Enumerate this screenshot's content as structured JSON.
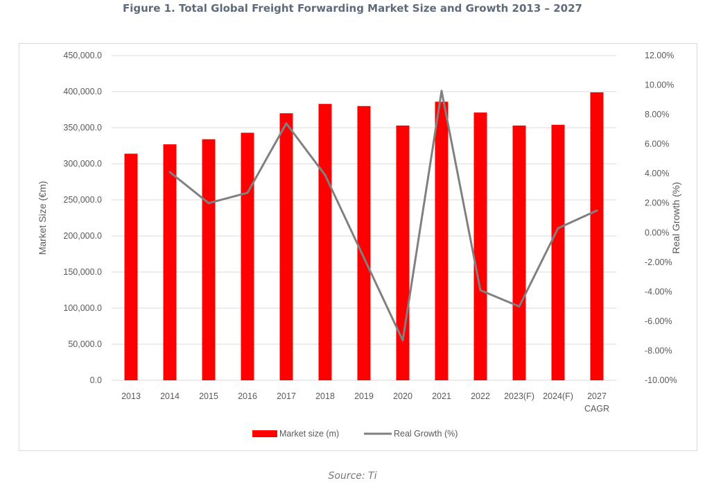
{
  "figure_title": "Figure 1. Total Global Freight Forwarding Market Size and Growth 2013 – 2027",
  "source": "Source: Ti",
  "colors": {
    "bar": "#ff0000",
    "line": "#808080",
    "grid": "#d9d9d9",
    "text": "#595959"
  },
  "chart_data": {
    "type": "bar",
    "combo": "bar+line",
    "categories": [
      "2013",
      "2014",
      "2015",
      "2016",
      "2017",
      "2018",
      "2019",
      "2020",
      "2021",
      "2022",
      "2023(F)",
      "2024(F)",
      "2027 CAGR"
    ],
    "category_labels": [
      [
        "2013"
      ],
      [
        "2014"
      ],
      [
        "2015"
      ],
      [
        "2016"
      ],
      [
        "2017"
      ],
      [
        "2018"
      ],
      [
        "2019"
      ],
      [
        "2020"
      ],
      [
        "2021"
      ],
      [
        "2022"
      ],
      [
        "2023(F)"
      ],
      [
        "2024(F)"
      ],
      [
        "2027",
        "CAGR"
      ]
    ],
    "series": [
      {
        "name": "Market size (m)",
        "type": "bar",
        "axis": "left",
        "values": [
          314000,
          327000,
          334000,
          343000,
          370000,
          383000,
          380000,
          353000,
          386000,
          371000,
          353000,
          354000,
          399000
        ]
      },
      {
        "name": "Real Growth (%)",
        "type": "line",
        "axis": "right",
        "values": [
          null,
          4.1,
          2.0,
          2.7,
          7.4,
          3.9,
          -1.7,
          -7.3,
          9.6,
          -3.9,
          -5.0,
          0.3,
          1.5
        ]
      }
    ],
    "ylabel": "Market Size (€m)",
    "y2label": "Real Growth (%)",
    "ylim": [
      0,
      450000
    ],
    "y2lim": [
      -10,
      12
    ],
    "yticks": [
      "450,000.0",
      "400,000.0",
      "350,000.0",
      "300,000.0",
      "250,000.0",
      "200,000.0",
      "150,000.0",
      "100,000.0",
      "50,000.0",
      "0.0"
    ],
    "y2ticks": [
      "12.00%",
      "10.00%",
      "8.00%",
      "6.00%",
      "4.00%",
      "2.00%",
      "0.00%",
      "-2.00%",
      "-4.00%",
      "-6.00%",
      "-8.00%",
      "-10.00%"
    ],
    "grid": true,
    "legend": {
      "position": "bottom",
      "items": [
        "Market size (m)",
        "Real Growth (%)"
      ]
    }
  }
}
